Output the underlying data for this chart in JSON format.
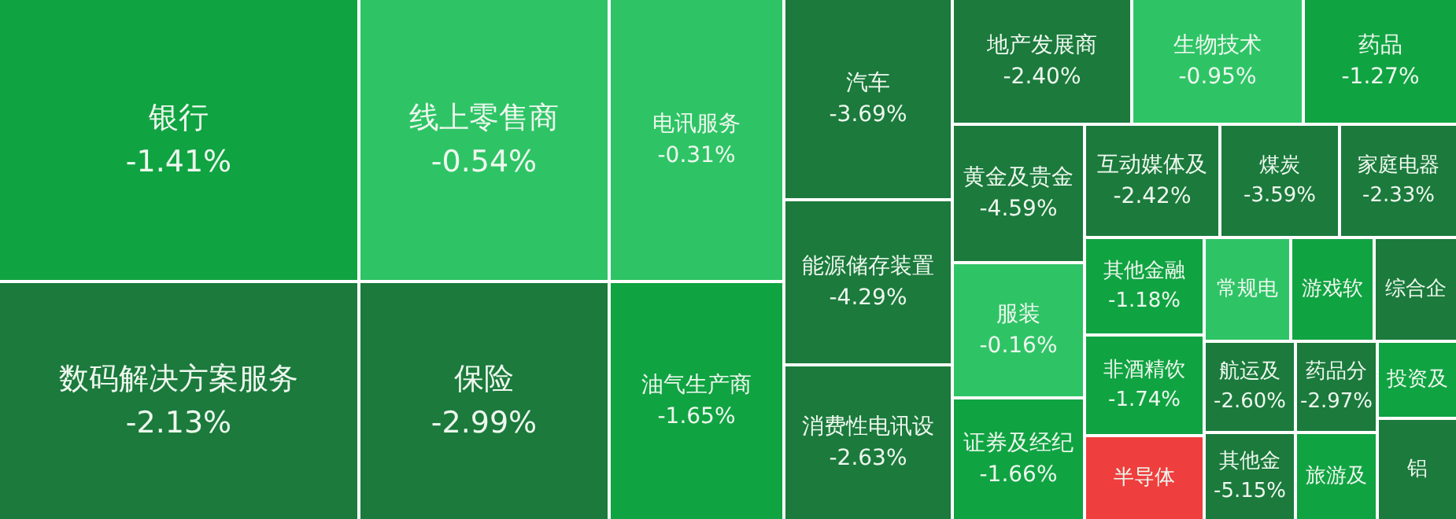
{
  "chart_data": {
    "type": "other",
    "categories": [
      "银行",
      "数码解决方案服务",
      "线上零售商",
      "保险",
      "电讯服务",
      "油气生产商",
      "汽车",
      "能源储存装置",
      "消费性电讯设",
      "地产发展商",
      "生物技术",
      "药品",
      "黄金及贵金",
      "服装",
      "证券及经纪",
      "互动媒体及",
      "煤炭",
      "家庭电器",
      "其他金融",
      "非酒精饮",
      "半导体",
      "常规电",
      "游戏软",
      "综合企",
      "航运及",
      "其他金",
      "药品分",
      "旅游及",
      "投资及",
      "铝"
    ],
    "values": [
      -1.41,
      -2.13,
      -0.54,
      -2.99,
      -0.31,
      -1.65,
      -3.69,
      -4.29,
      -2.63,
      -2.4,
      -0.95,
      -1.27,
      -4.59,
      -0.16,
      -1.66,
      -2.42,
      -3.59,
      -2.33,
      -1.18,
      -1.74,
      null,
      null,
      null,
      null,
      -2.6,
      -5.15,
      -2.97,
      null,
      null,
      null
    ],
    "value_labels": [
      "-1.41%",
      "-2.13%",
      "-0.54%",
      "-2.99%",
      "-0.31%",
      "-1.65%",
      "-3.69%",
      "-4.29%",
      "-2.63%",
      "-2.40%",
      "-0.95%",
      "-1.27%",
      "-4.59%",
      "-0.16%",
      "-1.66%",
      "-2.42%",
      "-3.59%",
      "-2.33%",
      "-1.18%",
      "-1.74%",
      null,
      null,
      null,
      null,
      "-2.60%",
      "-5.15%",
      "-2.97%",
      null,
      null,
      null
    ],
    "colors": [
      "#10a342",
      "#1b7a3c",
      "#2ec466",
      "#1b7a3c",
      "#2ec466",
      "#10a342",
      "#1b7a3c",
      "#1b7a3c",
      "#1b7a3c",
      "#1b7a3c",
      "#2ec466",
      "#10a342",
      "#1b7a3c",
      "#2ec466",
      "#10a342",
      "#1b7a3c",
      "#1b7a3c",
      "#1b7a3c",
      "#10a342",
      "#10a342",
      "#ef3e3e",
      "#2ec466",
      "#10a342",
      "#1b7a3c",
      "#1b7a3c",
      "#1b7a3c",
      "#1b7a3c",
      "#10a342",
      "#10a342",
      "#1b7a3c"
    ]
  }
}
